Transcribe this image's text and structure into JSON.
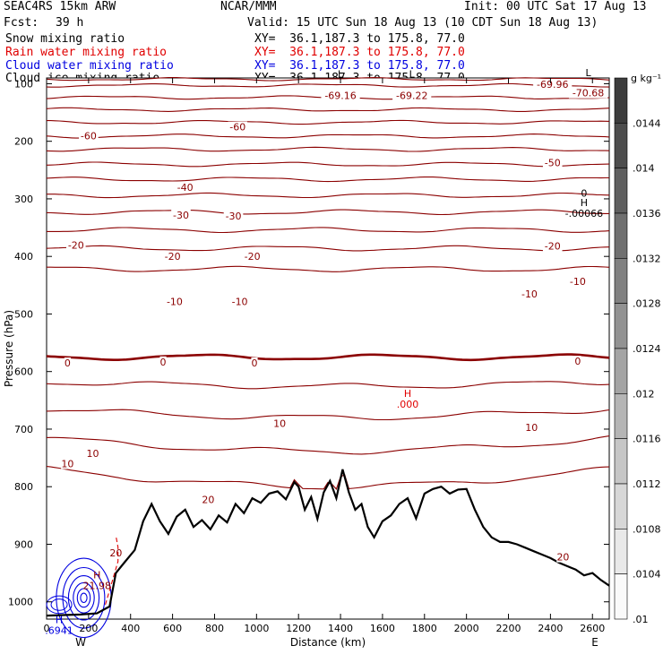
{
  "header": {
    "model": "SEAC4RS 15km ARW",
    "center": "NCAR/MMM",
    "init": "Init: 00 UTC Sat 17 Aug 13",
    "fcst_label": "Fcst:",
    "fcst_value": "39 h",
    "valid": "Valid: 15 UTC Sun 18 Aug 13 (10 CDT Sun 18 Aug 13)",
    "fields": [
      {
        "name": "Snow mixing ratio",
        "xy": "XY=  36.1,187.3 to 175.8, 77.0",
        "color": "#000000"
      },
      {
        "name": "Rain water mixing ratio",
        "xy": "XY=  36.1,187.3 to 175.8, 77.0",
        "color": "#e00000"
      },
      {
        "name": "Cloud water mixing ratio",
        "xy": "XY=  36.1,187.3 to 175.8, 77.0",
        "color": "#0000e0"
      },
      {
        "name": "Cloud ice mixing ratio",
        "xy": "XY=  36.1,187.3 to 175.8, 77.0",
        "color": "#000000"
      }
    ]
  },
  "chart_data": {
    "type": "line",
    "xlabel": "Distance (km)",
    "ylabel": "Pressure (hPa)",
    "xlim": [
      0,
      2680
    ],
    "ylim": [
      1030,
      90
    ],
    "x_ticks": [
      0,
      200,
      400,
      600,
      800,
      1000,
      1200,
      1400,
      1600,
      1800,
      2000,
      2200,
      2400,
      2600
    ],
    "y_ticks": [
      100,
      200,
      300,
      400,
      500,
      600,
      700,
      800,
      900,
      1000
    ],
    "x_end_labels": [
      "W",
      "E"
    ],
    "colors": {
      "temperature": "#8b0000",
      "terrain": "#000000",
      "rain": "#e00000",
      "cloud_water": "#0000e0"
    },
    "temperature_levels": [
      {
        "level": -70,
        "p": 92
      },
      {
        "level": -65,
        "p": 103
      },
      {
        "level": -60,
        "p": 124
      },
      {
        "level": -55,
        "p": 145
      },
      {
        "level": -50,
        "p": 167
      },
      {
        "level": -45,
        "p": 191
      },
      {
        "level": -40,
        "p": 214
      },
      {
        "level": -35,
        "p": 240
      },
      {
        "level": -30,
        "p": 266
      },
      {
        "level": -25,
        "p": 294
      },
      {
        "level": -20,
        "p": 323
      },
      {
        "level": -15,
        "p": 354
      },
      {
        "level": -10,
        "p": 386
      },
      {
        "level": -5,
        "p": 422
      },
      {
        "level": 0,
        "p": 575
      },
      {
        "level": 5,
        "p": 618
      },
      {
        "level": 10,
        "p": 665
      },
      {
        "level": 15,
        "p": 716
      },
      {
        "level": 20,
        "p": 770
      }
    ],
    "contour_labels": [
      {
        "text": "-69.16",
        "x": 1400,
        "p": 120
      },
      {
        "text": "-69.22",
        "x": 1740,
        "p": 120
      },
      {
        "text": "-69.96",
        "x": 2410,
        "p": 101
      },
      {
        "text": "-70.68",
        "x": 2580,
        "p": 116
      },
      {
        "text": "-60",
        "x": 200,
        "p": 190
      },
      {
        "text": "-60",
        "x": 910,
        "p": 175
      },
      {
        "text": "-50",
        "x": 2410,
        "p": 237
      },
      {
        "text": "-40",
        "x": 660,
        "p": 280
      },
      {
        "text": "-30",
        "x": 640,
        "p": 328
      },
      {
        "text": "-30",
        "x": 890,
        "p": 330
      },
      {
        "text": "-20",
        "x": 140,
        "p": 380
      },
      {
        "text": "-20",
        "x": 600,
        "p": 400
      },
      {
        "text": "-20",
        "x": 980,
        "p": 400
      },
      {
        "text": "-20",
        "x": 2410,
        "p": 382
      },
      {
        "text": "-10",
        "x": 610,
        "p": 478
      },
      {
        "text": "-10",
        "x": 920,
        "p": 478
      },
      {
        "text": "-10",
        "x": 2300,
        "p": 465
      },
      {
        "text": "-10",
        "x": 2530,
        "p": 443
      },
      {
        "text": "0",
        "x": 100,
        "p": 585
      },
      {
        "text": "0",
        "x": 555,
        "p": 583
      },
      {
        "text": "0",
        "x": 990,
        "p": 585
      },
      {
        "text": "0",
        "x": 2530,
        "p": 582
      },
      {
        "text": "10",
        "x": 100,
        "p": 760
      },
      {
        "text": "10",
        "x": 220,
        "p": 742
      },
      {
        "text": "10",
        "x": 1110,
        "p": 690
      },
      {
        "text": "10",
        "x": 2310,
        "p": 697
      },
      {
        "text": "20",
        "x": 770,
        "p": 822
      },
      {
        "text": "20",
        "x": 2460,
        "p": 922
      }
    ],
    "extrema_labels": [
      {
        "marker": "H",
        "value": "-.00066",
        "x": 2560,
        "p": 316,
        "color": "#000000"
      },
      {
        "marker": "H",
        "value": ".000",
        "x": 1720,
        "p": 647,
        "color": "#e00000"
      },
      {
        "marker": "H",
        "value": "21.98",
        "x": 240,
        "p": 962,
        "color": "#8b0000"
      },
      {
        "marker": "H",
        "value": ".6941",
        "x": 60,
        "p": 1040,
        "color": "#0000e0"
      },
      {
        "marker": "L",
        "value": "",
        "x": 1400,
        "p": 92,
        "color": "#000000"
      },
      {
        "marker": "L",
        "value": "",
        "x": 1740,
        "p": 92,
        "color": "#000000"
      },
      {
        "marker": "L",
        "value": "",
        "x": 2580,
        "p": 90,
        "color": "#000000"
      }
    ],
    "small_labels": [
      {
        "text": "20",
        "x": 330,
        "p": 915,
        "color": "#8b0000"
      },
      {
        "text": "0",
        "x": 2560,
        "p": 290,
        "color": "#000000"
      }
    ],
    "terrain": {
      "x": [
        0,
        80,
        160,
        240,
        300,
        330,
        370,
        420,
        460,
        500,
        540,
        580,
        620,
        660,
        700,
        740,
        780,
        820,
        860,
        900,
        940,
        980,
        1020,
        1060,
        1100,
        1140,
        1180,
        1200,
        1230,
        1260,
        1290,
        1320,
        1350,
        1380,
        1410,
        1440,
        1470,
        1500,
        1530,
        1560,
        1600,
        1640,
        1680,
        1720,
        1760,
        1800,
        1840,
        1880,
        1920,
        1960,
        2000,
        2040,
        2080,
        2120,
        2160,
        2200,
        2240,
        2280,
        2320,
        2360,
        2400,
        2440,
        2480,
        2520,
        2560,
        2600,
        2640,
        2680
      ],
      "p": [
        1024,
        1023,
        1022,
        1020,
        1008,
        950,
        932,
        910,
        860,
        830,
        860,
        882,
        852,
        840,
        870,
        858,
        874,
        850,
        862,
        830,
        846,
        820,
        828,
        812,
        808,
        822,
        792,
        800,
        840,
        818,
        856,
        810,
        790,
        820,
        770,
        810,
        840,
        830,
        870,
        888,
        860,
        850,
        830,
        820,
        855,
        812,
        804,
        800,
        812,
        805,
        804,
        840,
        870,
        888,
        896,
        896,
        900,
        906,
        912,
        918,
        924,
        932,
        938,
        944,
        954,
        950,
        962,
        972
      ]
    },
    "rain_water": {
      "x": [
        280,
        300,
        320,
        340,
        340,
        330
      ],
      "p": [
        1005,
        980,
        955,
        930,
        905,
        885
      ]
    },
    "cloud_water_center": {
      "x": 160,
      "p": 990
    }
  },
  "colorbar": {
    "unit": "g kg⁻¹",
    "ticks": [
      ".0144",
      ".014",
      ".0136",
      ".0132",
      ".0128",
      ".0124",
      ".012",
      ".0116",
      ".0112",
      ".0108",
      ".0104",
      ".01"
    ]
  }
}
